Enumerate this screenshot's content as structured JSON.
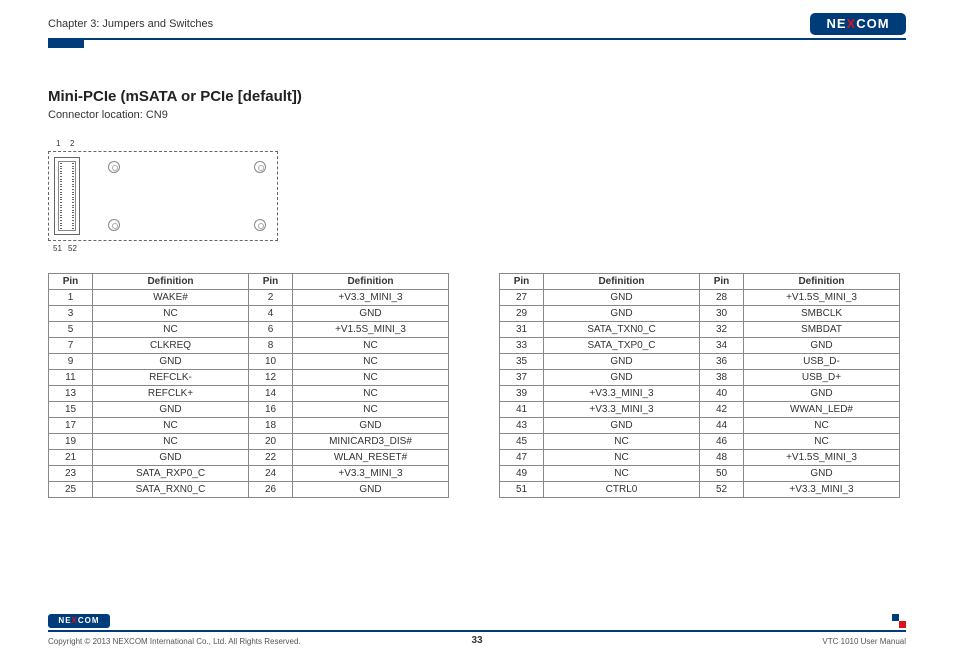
{
  "header": {
    "chapter": "Chapter 3: Jumpers and Switches",
    "logo_text_n": "NE",
    "logo_text_x": "X",
    "logo_text_com": "COM"
  },
  "section": {
    "title": "Mini-PCIe (mSATA or PCIe [default])",
    "subtitle": "Connector location: CN9"
  },
  "diagram": {
    "pin1": "1",
    "pin2": "2",
    "pin51": "51",
    "pin52": "52"
  },
  "table_headers": {
    "pin": "Pin",
    "def": "Definition"
  },
  "left_rows": [
    {
      "p1": "1",
      "d1": "WAKE#",
      "p2": "2",
      "d2": "+V3.3_MINI_3"
    },
    {
      "p1": "3",
      "d1": "NC",
      "p2": "4",
      "d2": "GND"
    },
    {
      "p1": "5",
      "d1": "NC",
      "p2": "6",
      "d2": "+V1.5S_MINI_3"
    },
    {
      "p1": "7",
      "d1": "CLKREQ",
      "p2": "8",
      "d2": "NC"
    },
    {
      "p1": "9",
      "d1": "GND",
      "p2": "10",
      "d2": "NC"
    },
    {
      "p1": "11",
      "d1": "REFCLK-",
      "p2": "12",
      "d2": "NC"
    },
    {
      "p1": "13",
      "d1": "REFCLK+",
      "p2": "14",
      "d2": "NC"
    },
    {
      "p1": "15",
      "d1": "GND",
      "p2": "16",
      "d2": "NC"
    },
    {
      "p1": "17",
      "d1": "NC",
      "p2": "18",
      "d2": "GND"
    },
    {
      "p1": "19",
      "d1": "NC",
      "p2": "20",
      "d2": "MINICARD3_DIS#"
    },
    {
      "p1": "21",
      "d1": "GND",
      "p2": "22",
      "d2": "WLAN_RESET#"
    },
    {
      "p1": "23",
      "d1": "SATA_RXP0_C",
      "p2": "24",
      "d2": "+V3.3_MINI_3"
    },
    {
      "p1": "25",
      "d1": "SATA_RXN0_C",
      "p2": "26",
      "d2": "GND"
    }
  ],
  "right_rows": [
    {
      "p1": "27",
      "d1": "GND",
      "p2": "28",
      "d2": "+V1.5S_MINI_3"
    },
    {
      "p1": "29",
      "d1": "GND",
      "p2": "30",
      "d2": "SMBCLK"
    },
    {
      "p1": "31",
      "d1": "SATA_TXN0_C",
      "p2": "32",
      "d2": "SMBDAT"
    },
    {
      "p1": "33",
      "d1": "SATA_TXP0_C",
      "p2": "34",
      "d2": "GND"
    },
    {
      "p1": "35",
      "d1": "GND",
      "p2": "36",
      "d2": "USB_D-"
    },
    {
      "p1": "37",
      "d1": "GND",
      "p2": "38",
      "d2": "USB_D+"
    },
    {
      "p1": "39",
      "d1": "+V3.3_MINI_3",
      "p2": "40",
      "d2": "GND"
    },
    {
      "p1": "41",
      "d1": "+V3.3_MINI_3",
      "p2": "42",
      "d2": "WWAN_LED#"
    },
    {
      "p1": "43",
      "d1": "GND",
      "p2": "44",
      "d2": "NC"
    },
    {
      "p1": "45",
      "d1": "NC",
      "p2": "46",
      "d2": "NC"
    },
    {
      "p1": "47",
      "d1": "NC",
      "p2": "48",
      "d2": "+V1.5S_MINI_3"
    },
    {
      "p1": "49",
      "d1": "NC",
      "p2": "50",
      "d2": "GND"
    },
    {
      "p1": "51",
      "d1": "CTRL0",
      "p2": "52",
      "d2": "+V3.3_MINI_3"
    }
  ],
  "footer": {
    "copyright": "Copyright © 2013 NEXCOM International Co., Ltd. All Rights Reserved.",
    "page": "33",
    "manual": "VTC 1010 User Manual"
  }
}
